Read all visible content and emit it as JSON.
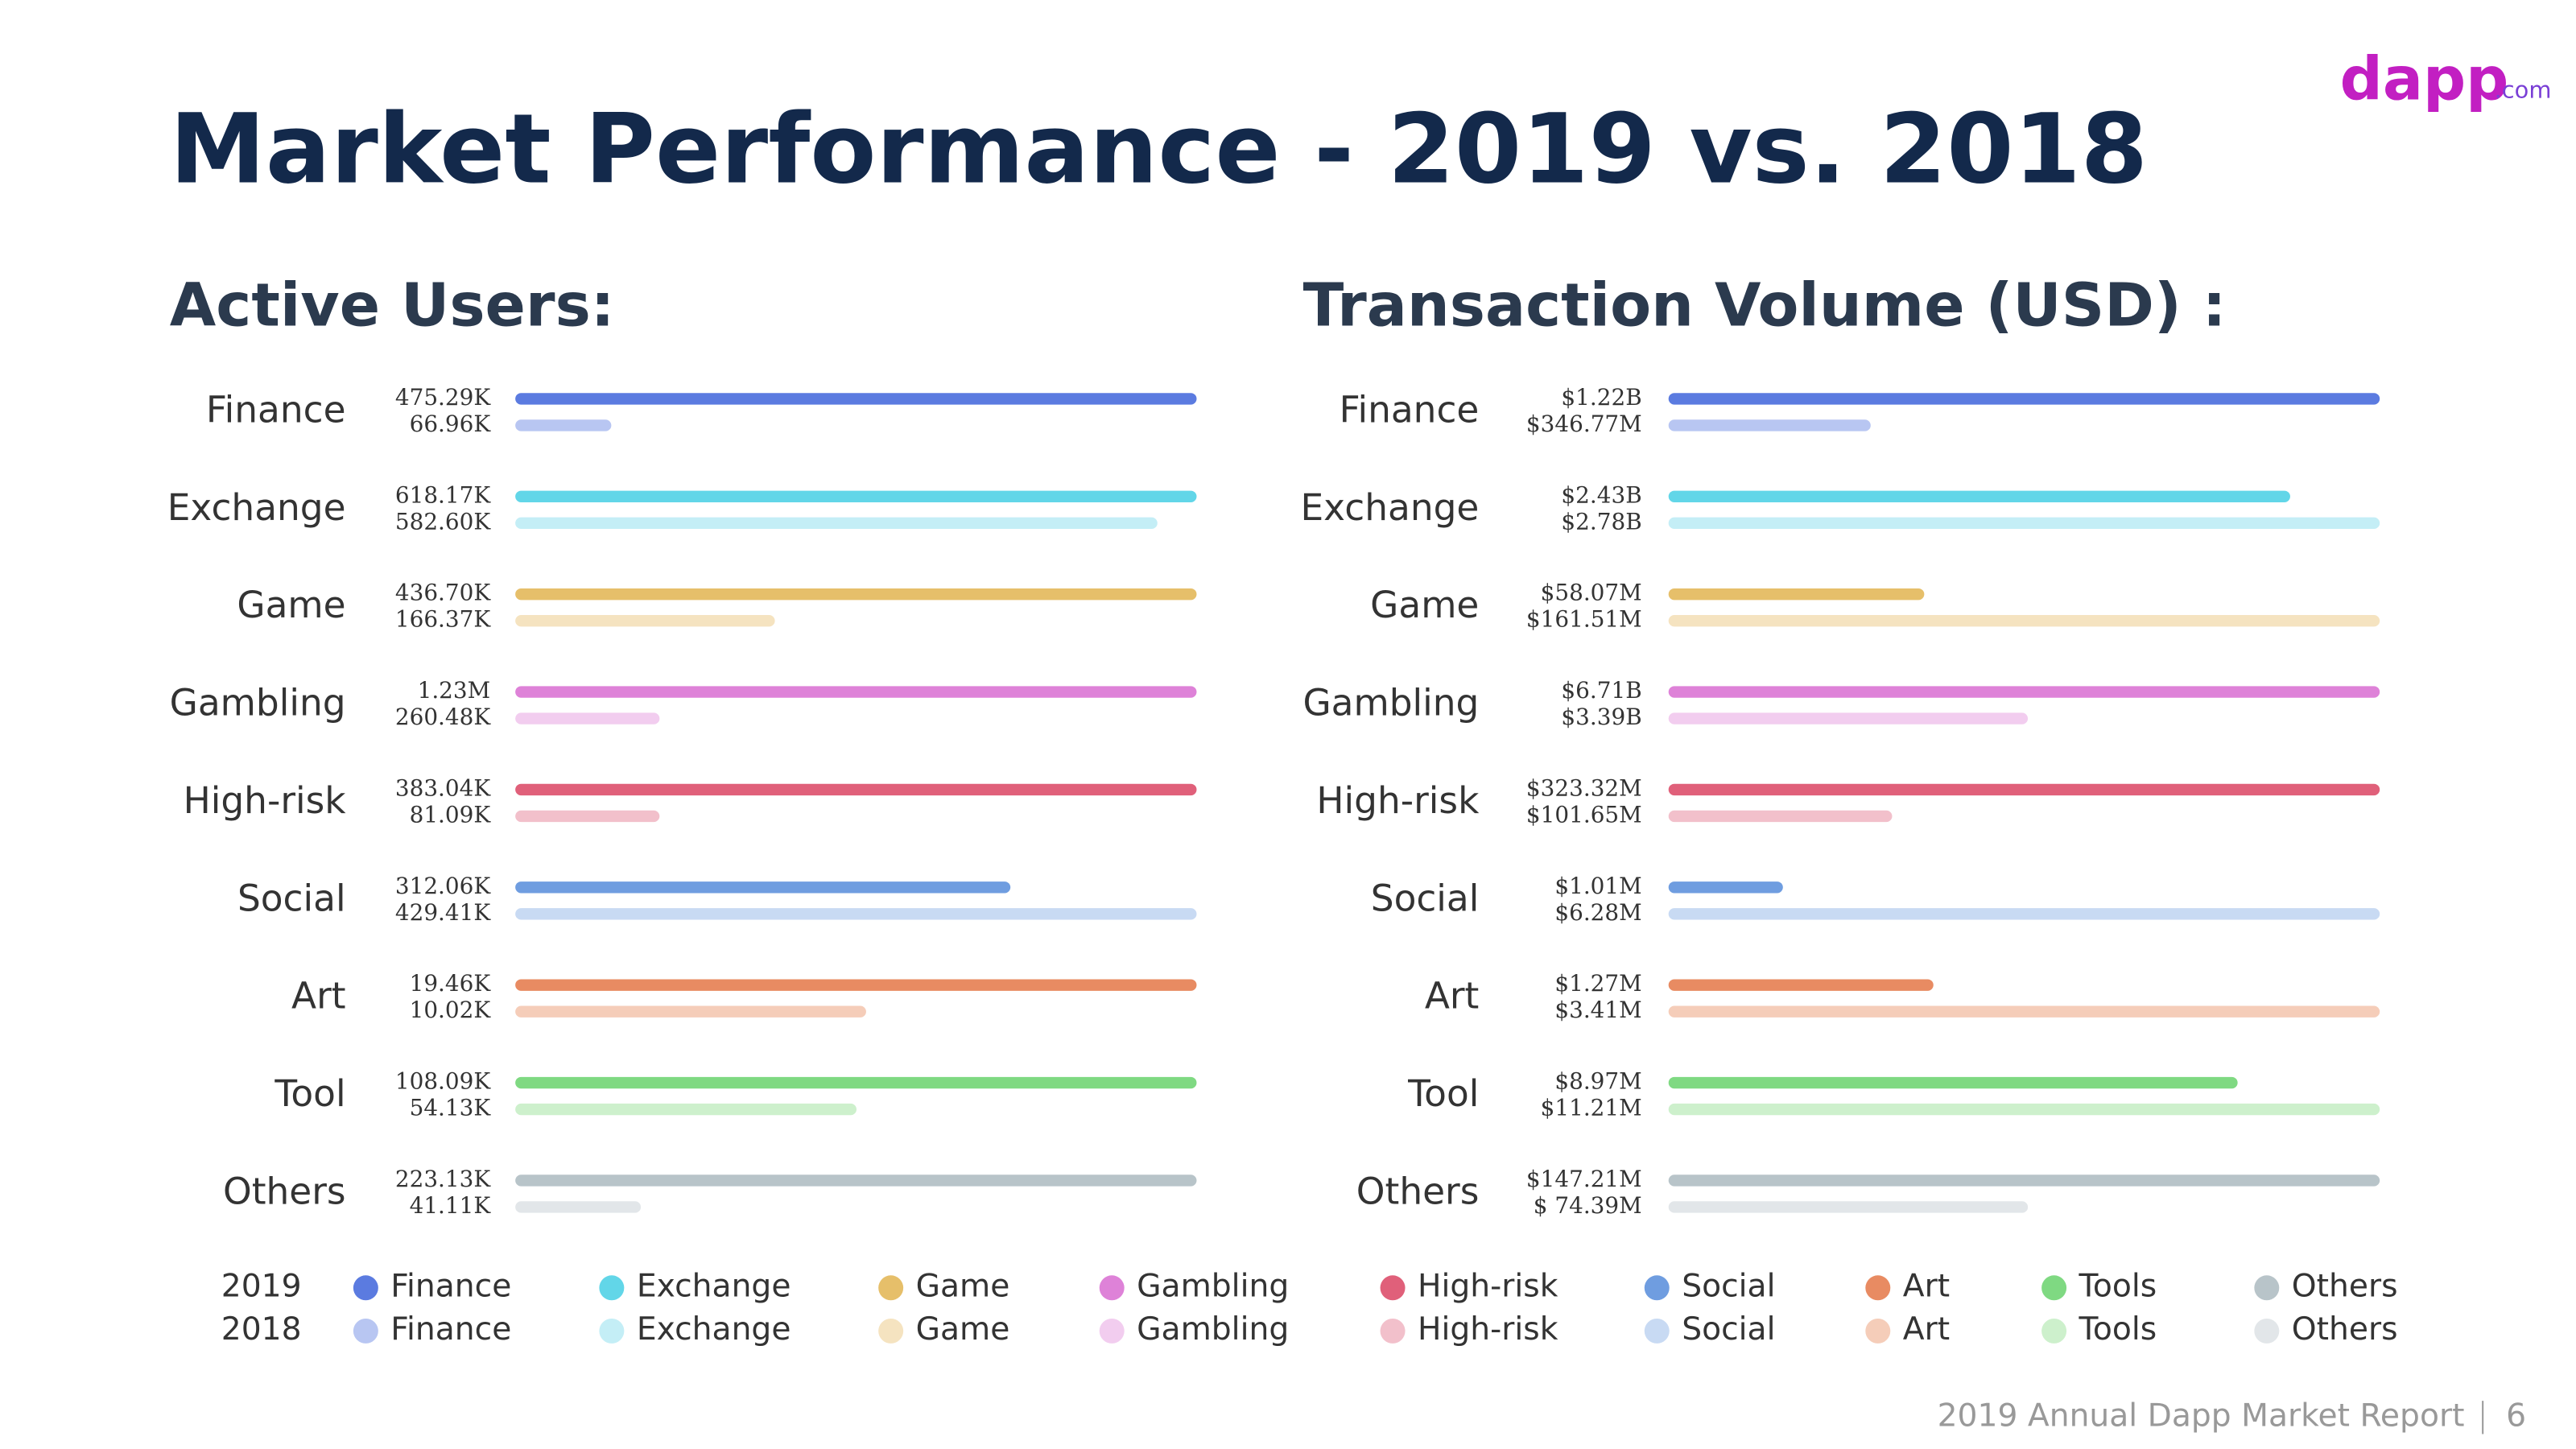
{
  "title": "Market Performance - 2019 vs. 2018",
  "logo": {
    "name": "dapp",
    "suffix": ".com"
  },
  "footer": {
    "text": "2019 Annual Dapp Market Report",
    "page": 6
  },
  "legend": {
    "years": [
      "2019",
      "2018"
    ],
    "items": [
      {
        "label": "Finance",
        "colors": [
          "#5b7be0",
          "#b8c6f2"
        ]
      },
      {
        "label": "Exchange",
        "colors": [
          "#62d6e8",
          "#c4eef6"
        ]
      },
      {
        "label": "Game",
        "colors": [
          "#e6bf6a",
          "#f5e3c0"
        ]
      },
      {
        "label": "Gambling",
        "colors": [
          "#de82d8",
          "#f2cdef"
        ]
      },
      {
        "label": "High-risk",
        "colors": [
          "#e0607a",
          "#f2c0cb"
        ]
      },
      {
        "label": "Social",
        "colors": [
          "#6f9de0",
          "#c8daf3"
        ]
      },
      {
        "label": "Art",
        "colors": [
          "#e88b62",
          "#f5cdb9"
        ]
      },
      {
        "label": "Tools",
        "colors": [
          "#7fd982",
          "#cdf0cc"
        ]
      },
      {
        "label": "Others",
        "colors": [
          "#b8c4c9",
          "#e2e6e9"
        ]
      }
    ]
  },
  "chart_data": [
    {
      "type": "bar",
      "orientation": "horizontal",
      "title": "Active Users:",
      "categories": [
        "Finance",
        "Exchange",
        "Game",
        "Gambling",
        "High-risk",
        "Social",
        "Art",
        "Tool",
        "Others"
      ],
      "series": [
        {
          "name": "2019",
          "colors": [
            "#5b7be0",
            "#62d6e8",
            "#e6bf6a",
            "#de82d8",
            "#e0607a",
            "#6f9de0",
            "#e88b62",
            "#7fd982",
            "#b8c4c9"
          ],
          "values": [
            475290,
            618170,
            436700,
            1230000,
            383040,
            312060,
            19460,
            108090,
            223130
          ],
          "value_labels": [
            "475.29K",
            "618.17K",
            "436.70K",
            "1.23M",
            "383.04K",
            "312.06K",
            "19.46K",
            "108.09K",
            "223.13K"
          ]
        },
        {
          "name": "2018",
          "colors": [
            "#b8c6f2",
            "#c4eef6",
            "#f5e3c0",
            "#f2cdef",
            "#f2c0cb",
            "#c8daf3",
            "#f5cdb9",
            "#cdf0cc",
            "#e2e6e9"
          ],
          "values": [
            66960,
            582600,
            166370,
            260480,
            81090,
            429410,
            10020,
            54130,
            41110
          ],
          "value_labels": [
            "66.96K",
            "582.60K",
            "166.37K",
            "260.48K",
            "81.09K",
            "429.41K",
            "10.02K",
            "54.13K",
            "41.11K"
          ]
        }
      ]
    },
    {
      "type": "bar",
      "orientation": "horizontal",
      "title": "Transaction Volume (USD) :",
      "categories": [
        "Finance",
        "Exchange",
        "Game",
        "Gambling",
        "High-risk",
        "Social",
        "Art",
        "Tool",
        "Others"
      ],
      "series": [
        {
          "name": "2019",
          "colors": [
            "#5b7be0",
            "#62d6e8",
            "#e6bf6a",
            "#de82d8",
            "#e0607a",
            "#6f9de0",
            "#e88b62",
            "#7fd982",
            "#b8c4c9"
          ],
          "values": [
            1220000000,
            2430000000,
            58070000,
            6710000000,
            323320000,
            1010000,
            1270000,
            8970000,
            147210000
          ],
          "value_labels": [
            "$1.22B",
            "$2.43B",
            "$58.07M",
            "$6.71B",
            "$323.32M",
            "$1.01M",
            "$1.27M",
            "$8.97M",
            "$147.21M"
          ]
        },
        {
          "name": "2018",
          "colors": [
            "#b8c6f2",
            "#c4eef6",
            "#f5e3c0",
            "#f2cdef",
            "#f2c0cb",
            "#c8daf3",
            "#f5cdb9",
            "#cdf0cc",
            "#e2e6e9"
          ],
          "values": [
            346770000,
            2780000000,
            161510000,
            3390000000,
            101650000,
            6280000,
            3410000,
            11210000,
            74390000
          ],
          "value_labels": [
            "$346.77M",
            "$2.78B",
            "$161.51M",
            "$3.39B",
            "$101.65M",
            "$6.28M",
            "$3.41M",
            "$11.21M",
            "$ 74.39M"
          ]
        }
      ]
    }
  ]
}
